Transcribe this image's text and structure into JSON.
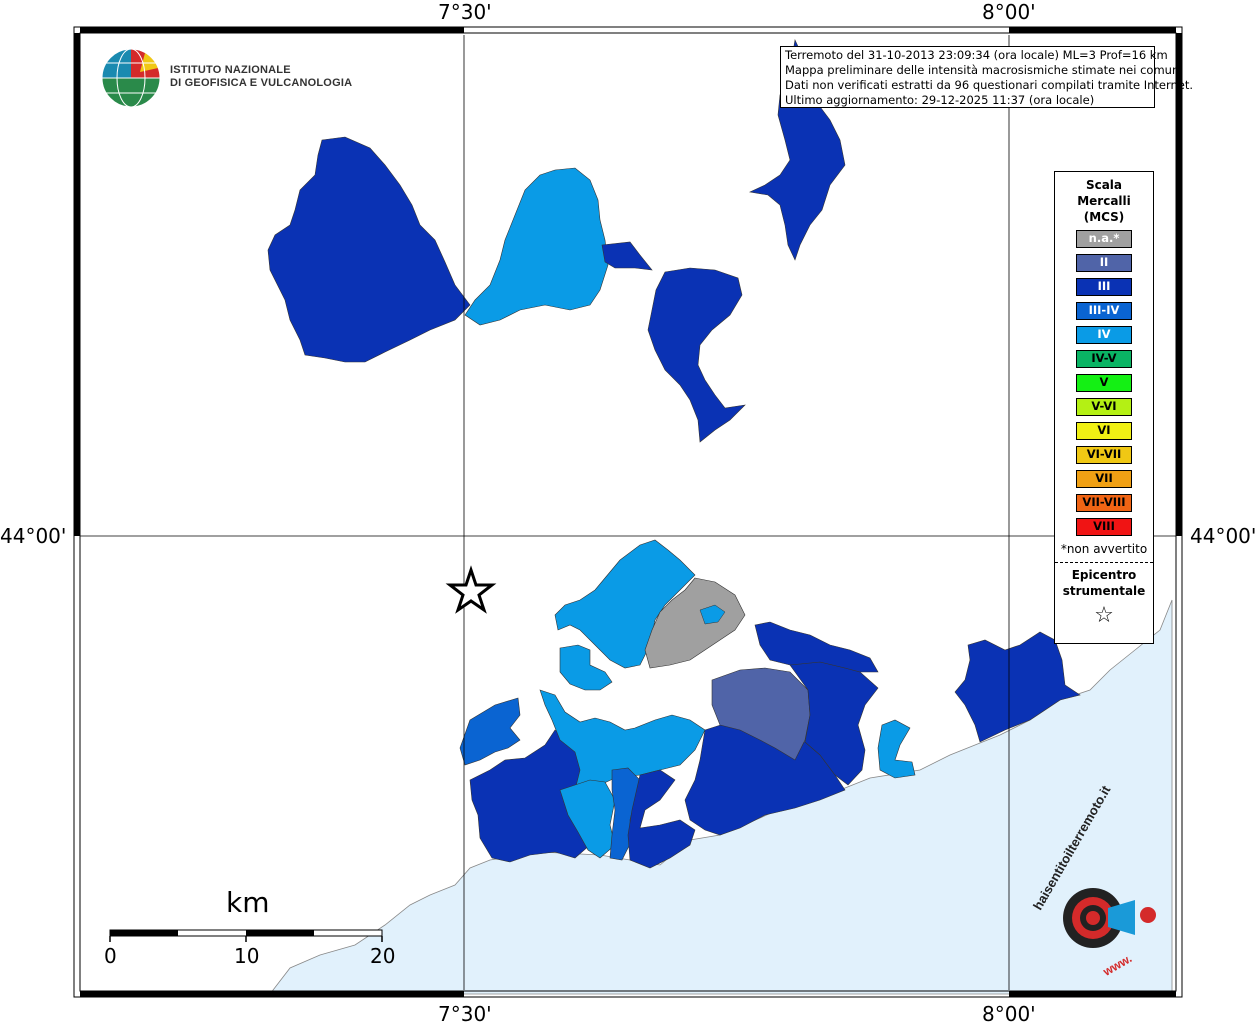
{
  "coords": {
    "top": [
      "7°30'",
      "8°00'"
    ],
    "bottom": [
      "7°30'",
      "8°00'"
    ],
    "left": "44°00'",
    "right": "44°00'"
  },
  "logo": {
    "line1": "ISTITUTO NAZIONALE",
    "line2": "DI GEOFISICA E VULCANOLOGIA"
  },
  "info": {
    "line1": "Terremoto del 31-10-2013 23:09:34 (ora locale) ML=3 Prof=16 km",
    "line2": "Mappa preliminare delle intensità macrosismiche stimate nei comuni",
    "line3": "Dati non verificati estratti da 96 questionari compilati tramite Internet.",
    "line4": "Ultimo aggiornamento: 29-12-2025 11:37 (ora locale)"
  },
  "legend": {
    "title_line1": "Scala",
    "title_line2": "Mercalli",
    "title_line3": "(MCS)",
    "items": [
      {
        "label": "n.a.*",
        "color": "#a0a0a0",
        "text_color": "#ffffff"
      },
      {
        "label": "II",
        "color": "#5064a8",
        "text_color": "#ffffff"
      },
      {
        "label": "III",
        "color": "#0a32b4",
        "text_color": "#ffffff"
      },
      {
        "label": "III-IV",
        "color": "#0a64d2",
        "text_color": "#ffffff"
      },
      {
        "label": "IV",
        "color": "#0a9be6",
        "text_color": "#ffffff"
      },
      {
        "label": "IV-V",
        "color": "#0ab464",
        "text_color": "#000000"
      },
      {
        "label": "V",
        "color": "#14f014",
        "text_color": "#000000"
      },
      {
        "label": "V-VI",
        "color": "#b4f014",
        "text_color": "#000000"
      },
      {
        "label": "VI",
        "color": "#f0f014",
        "text_color": "#000000"
      },
      {
        "label": "VI-VII",
        "color": "#f0c814",
        "text_color": "#000000"
      },
      {
        "label": "VII",
        "color": "#f0a014",
        "text_color": "#000000"
      },
      {
        "label": "VII-VIII",
        "color": "#f06414",
        "text_color": "#000000"
      },
      {
        "label": "VIII",
        "color": "#f01414",
        "text_color": "#000000"
      }
    ],
    "note": "*non avvertito",
    "epi_line1": "Epicentro",
    "epi_line2": "strumentale",
    "star": "☆"
  },
  "scale_bar": {
    "unit": "km",
    "ticks": [
      "0",
      "10",
      "20"
    ]
  },
  "hsit_logo": {
    "text": "haisentitoilterremoto.it",
    "www": "www."
  },
  "colors": {
    "sea": "#e1f1fc",
    "intensity_II": "#5064a8",
    "intensity_III": "#0a32b4",
    "intensity_III_IV": "#0a64d2",
    "intensity_IV": "#0a9be6",
    "na": "#a0a0a0"
  }
}
